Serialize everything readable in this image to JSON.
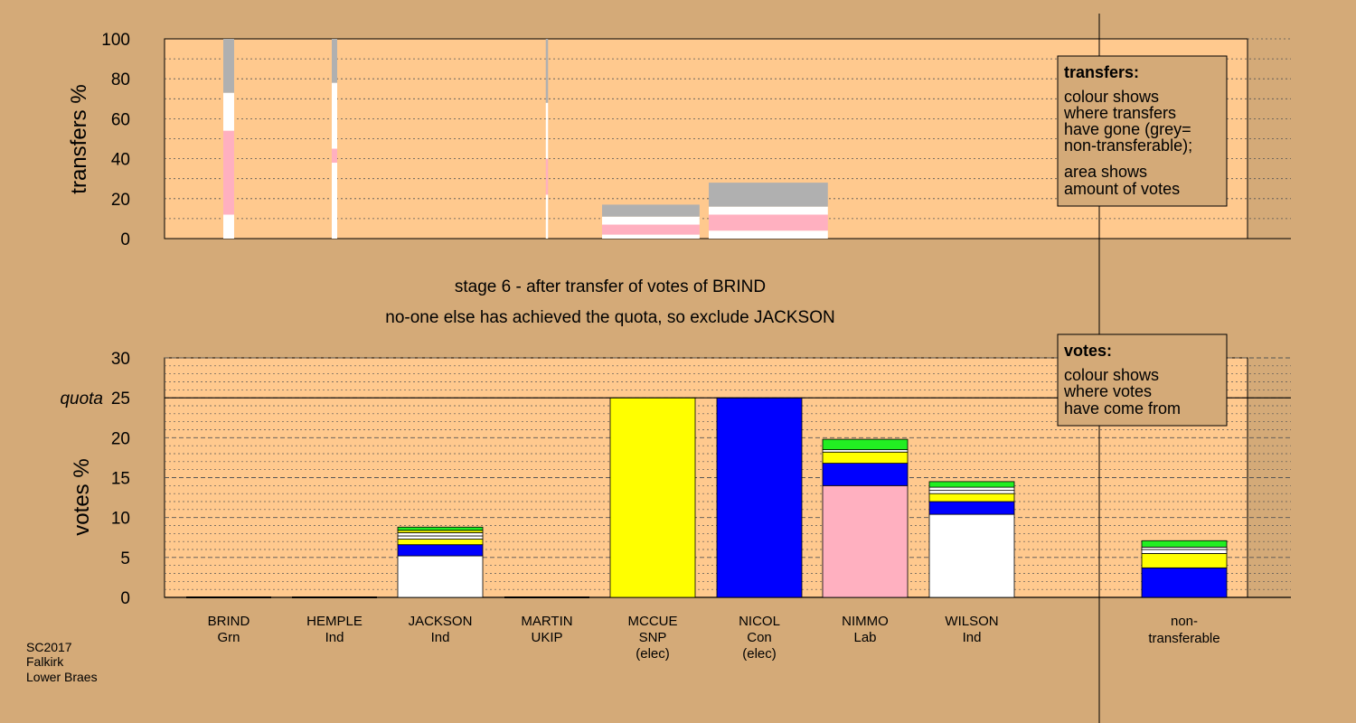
{
  "colors": {
    "page_bg": "#d4aa78",
    "plot_bg": "#ffc98e",
    "legend_bg": "#d4aa78",
    "Grn": "#22ee22",
    "Ind": "#ffffff",
    "UKIP": "#7a2a8a",
    "SNP": "#ffff00",
    "Con": "#0000ff",
    "Lab": "#ffb0c0",
    "NT": "#b0b0b0"
  },
  "titles": {
    "stage": "stage 6 - after transfer of votes of BRIND",
    "status": "no-one else has achieved the quota, so exclude JACKSON"
  },
  "footer": [
    "SC2017",
    "Falkirk",
    "Lower Braes"
  ],
  "legend_transfers": {
    "title": "transfers:",
    "lines": [
      "colour shows",
      "where transfers",
      "have gone (grey=",
      "non-transferable);",
      "area shows",
      "amount of votes"
    ]
  },
  "legend_votes": {
    "title": "votes:",
    "lines": [
      "colour shows",
      "where votes",
      "have come from"
    ]
  },
  "candidates": [
    {
      "name": "BRIND",
      "party": "Grn",
      "note": ""
    },
    {
      "name": "HEMPLE",
      "party": "Ind",
      "note": ""
    },
    {
      "name": "JACKSON",
      "party": "Ind",
      "note": ""
    },
    {
      "name": "MARTIN",
      "party": "UKIP",
      "note": ""
    },
    {
      "name": "MCCUE",
      "party": "SNP",
      "note": "(elec)"
    },
    {
      "name": "NICOL",
      "party": "Con",
      "note": "(elec)"
    },
    {
      "name": "NIMMO",
      "party": "Lab",
      "note": ""
    },
    {
      "name": "WILSON",
      "party": "Ind",
      "note": ""
    }
  ],
  "nontransferable_label": [
    "non-",
    "transferable"
  ],
  "chart_data": [
    {
      "type": "bar",
      "title": "",
      "ylabel": "transfers %",
      "ylim": [
        0,
        100
      ],
      "yticks": [
        0,
        20,
        40,
        60,
        80,
        100
      ],
      "grid": "dotted",
      "bars": [
        {
          "candidate": "BRIND",
          "width_pct": 1.0,
          "segments": [
            {
              "color": "Ind",
              "from": 0,
              "to": 12
            },
            {
              "color": "Lab",
              "from": 12,
              "to": 54
            },
            {
              "color": "Ind",
              "from": 54,
              "to": 73
            },
            {
              "color": "NT",
              "from": 73,
              "to": 100
            }
          ]
        },
        {
          "candidate": "HEMPLE",
          "width_pct": 0.5,
          "segments": [
            {
              "color": "Ind",
              "from": 0,
              "to": 38
            },
            {
              "color": "Lab",
              "from": 38,
              "to": 45
            },
            {
              "color": "Ind",
              "from": 45,
              "to": 78
            },
            {
              "color": "NT",
              "from": 78,
              "to": 100
            }
          ]
        },
        {
          "candidate": "MARTIN",
          "width_pct": 0.2,
          "segments": [
            {
              "color": "Ind",
              "from": 0,
              "to": 22
            },
            {
              "color": "Lab",
              "from": 22,
              "to": 40
            },
            {
              "color": "Ind",
              "from": 40,
              "to": 68
            },
            {
              "color": "NT",
              "from": 68,
              "to": 100
            }
          ]
        },
        {
          "candidate": "MCCUE",
          "width_pct": 9.0,
          "segments": [
            {
              "color": "Ind",
              "from": 0,
              "to": 2
            },
            {
              "color": "Lab",
              "from": 2,
              "to": 7
            },
            {
              "color": "Ind",
              "from": 7,
              "to": 11
            },
            {
              "color": "NT",
              "from": 11,
              "to": 17
            }
          ]
        },
        {
          "candidate": "NICOL",
          "width_pct": 11.0,
          "segments": [
            {
              "color": "Ind",
              "from": 0,
              "to": 4
            },
            {
              "color": "Lab",
              "from": 4,
              "to": 12
            },
            {
              "color": "Ind",
              "from": 12,
              "to": 16
            },
            {
              "color": "NT",
              "from": 16,
              "to": 28
            }
          ]
        }
      ]
    },
    {
      "type": "bar",
      "title": "",
      "ylabel": "votes %",
      "ylim": [
        0,
        30
      ],
      "yticks": [
        0,
        5,
        10,
        15,
        20,
        25,
        30
      ],
      "quota": 25,
      "quota_label": "quota",
      "grid": "dashed",
      "categories": [
        "BRIND",
        "HEMPLE",
        "JACKSON",
        "MARTIN",
        "MCCUE",
        "NICOL",
        "NIMMO",
        "WILSON",
        "non-transferable"
      ],
      "bars": [
        {
          "category": "BRIND",
          "segments": []
        },
        {
          "category": "HEMPLE",
          "segments": []
        },
        {
          "category": "JACKSON",
          "segments": [
            {
              "color": "Ind",
              "from": 0,
              "to": 5.2
            },
            {
              "color": "Con",
              "from": 5.2,
              "to": 6.6
            },
            {
              "color": "SNP",
              "from": 6.6,
              "to": 7.3
            },
            {
              "color": "Ind",
              "from": 7.3,
              "to": 7.7
            },
            {
              "color": "Ind",
              "from": 7.7,
              "to": 8.1
            },
            {
              "color": "SNP",
              "from": 8.1,
              "to": 8.4
            },
            {
              "color": "Grn",
              "from": 8.4,
              "to": 8.8
            }
          ]
        },
        {
          "category": "MARTIN",
          "segments": []
        },
        {
          "category": "MCCUE",
          "segments": [
            {
              "color": "SNP",
              "from": 0,
              "to": 25
            }
          ]
        },
        {
          "category": "NICOL",
          "segments": [
            {
              "color": "Con",
              "from": 0,
              "to": 25
            }
          ]
        },
        {
          "category": "NIMMO",
          "segments": [
            {
              "color": "Lab",
              "from": 0,
              "to": 14.0
            },
            {
              "color": "Con",
              "from": 14.0,
              "to": 16.8
            },
            {
              "color": "SNP",
              "from": 16.8,
              "to": 18.2
            },
            {
              "color": "Ind",
              "from": 18.2,
              "to": 18.5
            },
            {
              "color": "Grn",
              "from": 18.5,
              "to": 19.8
            }
          ]
        },
        {
          "category": "WILSON",
          "segments": [
            {
              "color": "Ind",
              "from": 0,
              "to": 10.4
            },
            {
              "color": "Con",
              "from": 10.4,
              "to": 12.0
            },
            {
              "color": "SNP",
              "from": 12.0,
              "to": 13.0
            },
            {
              "color": "Ind",
              "from": 13.0,
              "to": 13.4
            },
            {
              "color": "Ind",
              "from": 13.4,
              "to": 13.8
            },
            {
              "color": "Grn",
              "from": 13.8,
              "to": 14.5
            }
          ]
        },
        {
          "category": "non-transferable",
          "segments": [
            {
              "color": "Con",
              "from": 0,
              "to": 3.7
            },
            {
              "color": "SNP",
              "from": 3.7,
              "to": 5.5
            },
            {
              "color": "Ind",
              "from": 5.5,
              "to": 6.0
            },
            {
              "color": "Ind",
              "from": 6.0,
              "to": 6.3
            },
            {
              "color": "Grn",
              "from": 6.3,
              "to": 7.1
            }
          ]
        }
      ]
    }
  ]
}
